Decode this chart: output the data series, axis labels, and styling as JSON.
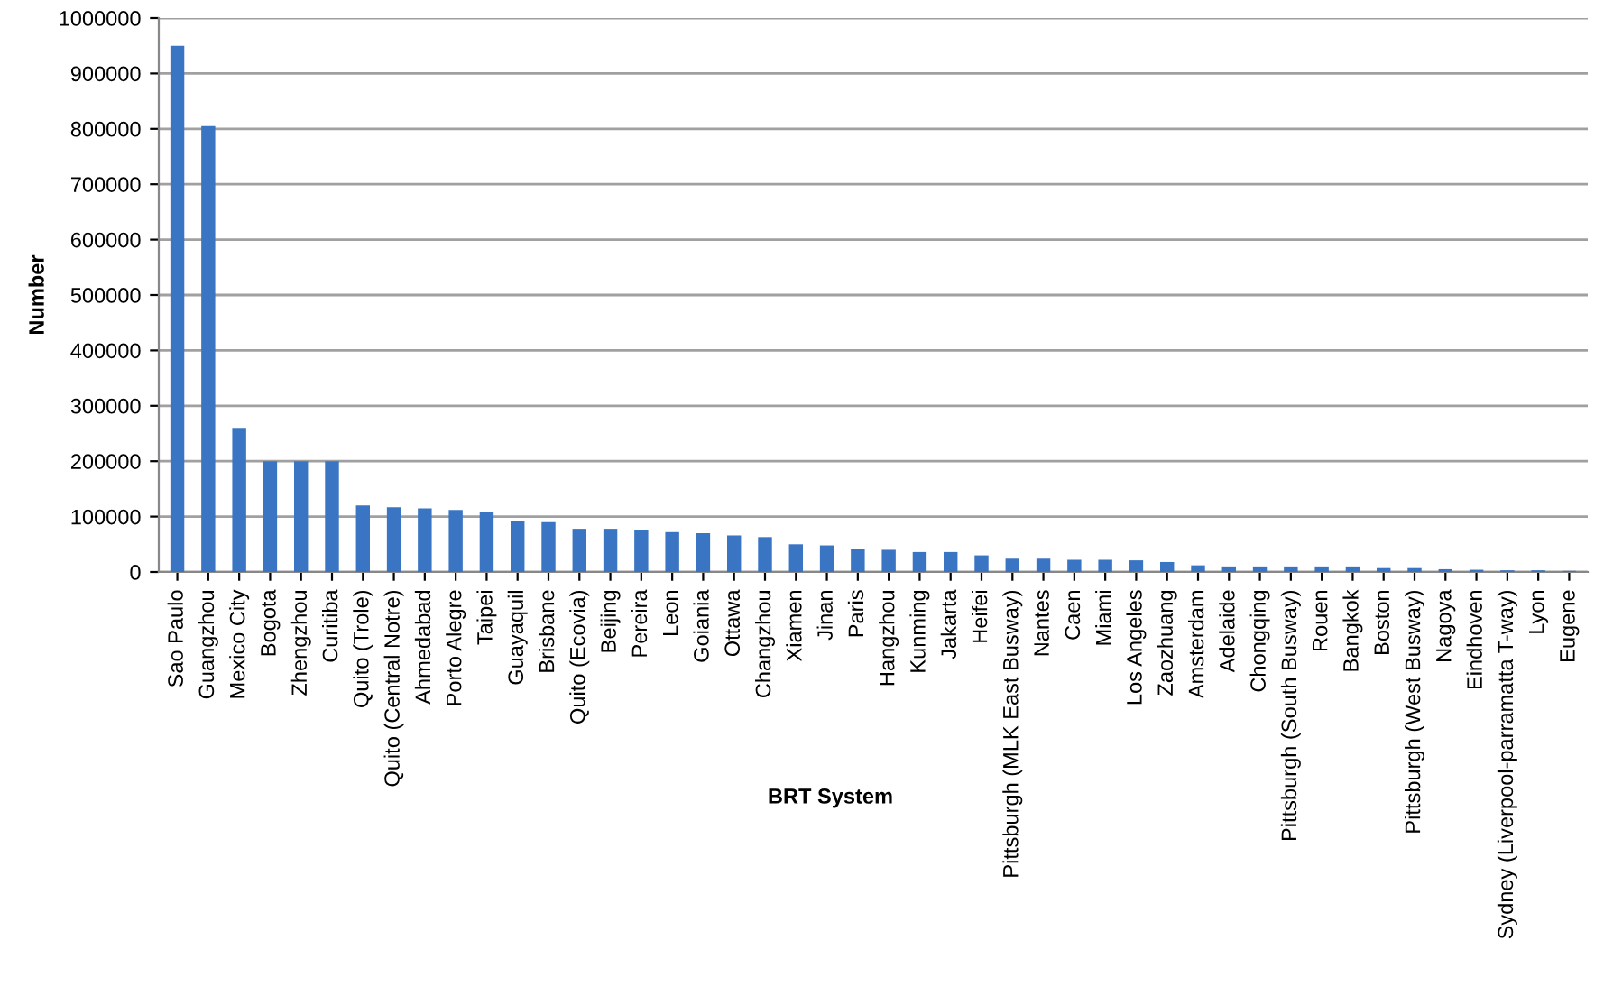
{
  "chart_data": {
    "type": "bar",
    "xlabel": "BRT System",
    "ylabel": "Number",
    "categories": [
      "Sao Paulo",
      "Guangzhou",
      "Mexico City",
      "Bogota",
      "Zhengzhou",
      "Curitiba",
      "Quito (Trole)",
      "Quito (Central Notre)",
      "Ahmedabad",
      "Porto Alegre",
      "Taipei",
      "Guayaquil",
      "Brisbane",
      "Quito (Ecovia)",
      "Beijing",
      "Pereira",
      "Leon",
      "Goiania",
      "Ottawa",
      "Changzhou",
      "Xiamen",
      "Jinan",
      "Paris",
      "Hangzhou",
      "Kunming",
      "Jakarta",
      "Heifei",
      "Pittsburgh (MLK East Busway)",
      "Nantes",
      "Caen",
      "Miami",
      "Los Angeles",
      "Zaozhuang",
      "Amsterdam",
      "Adelaide",
      "Chongqing",
      "Pittsburgh (South Busway)",
      "Rouen",
      "Bangkok",
      "Boston",
      "Pittsburgh (West Busway)",
      "Nagoya",
      "Eindhoven",
      "Sydney (Liverpool-parramatta T-way)",
      "Lyon",
      "Eugene"
    ],
    "values": [
      950000,
      805000,
      260000,
      200000,
      200000,
      200000,
      120000,
      117000,
      115000,
      112000,
      108000,
      93000,
      90000,
      78000,
      78000,
      75000,
      72000,
      70000,
      66000,
      63000,
      50000,
      48000,
      42000,
      40000,
      36000,
      36000,
      30000,
      24000,
      24000,
      22000,
      22000,
      21000,
      18000,
      12000,
      10000,
      10000,
      10000,
      10000,
      10000,
      7000,
      7000,
      5000,
      4000,
      3000,
      3000,
      2000
    ],
    "color": "#3a75c4",
    "ylim": [
      0,
      1000000
    ],
    "yticks": [
      0,
      100000,
      200000,
      300000,
      400000,
      500000,
      600000,
      700000,
      800000,
      900000,
      1000000
    ],
    "grid": "y"
  }
}
